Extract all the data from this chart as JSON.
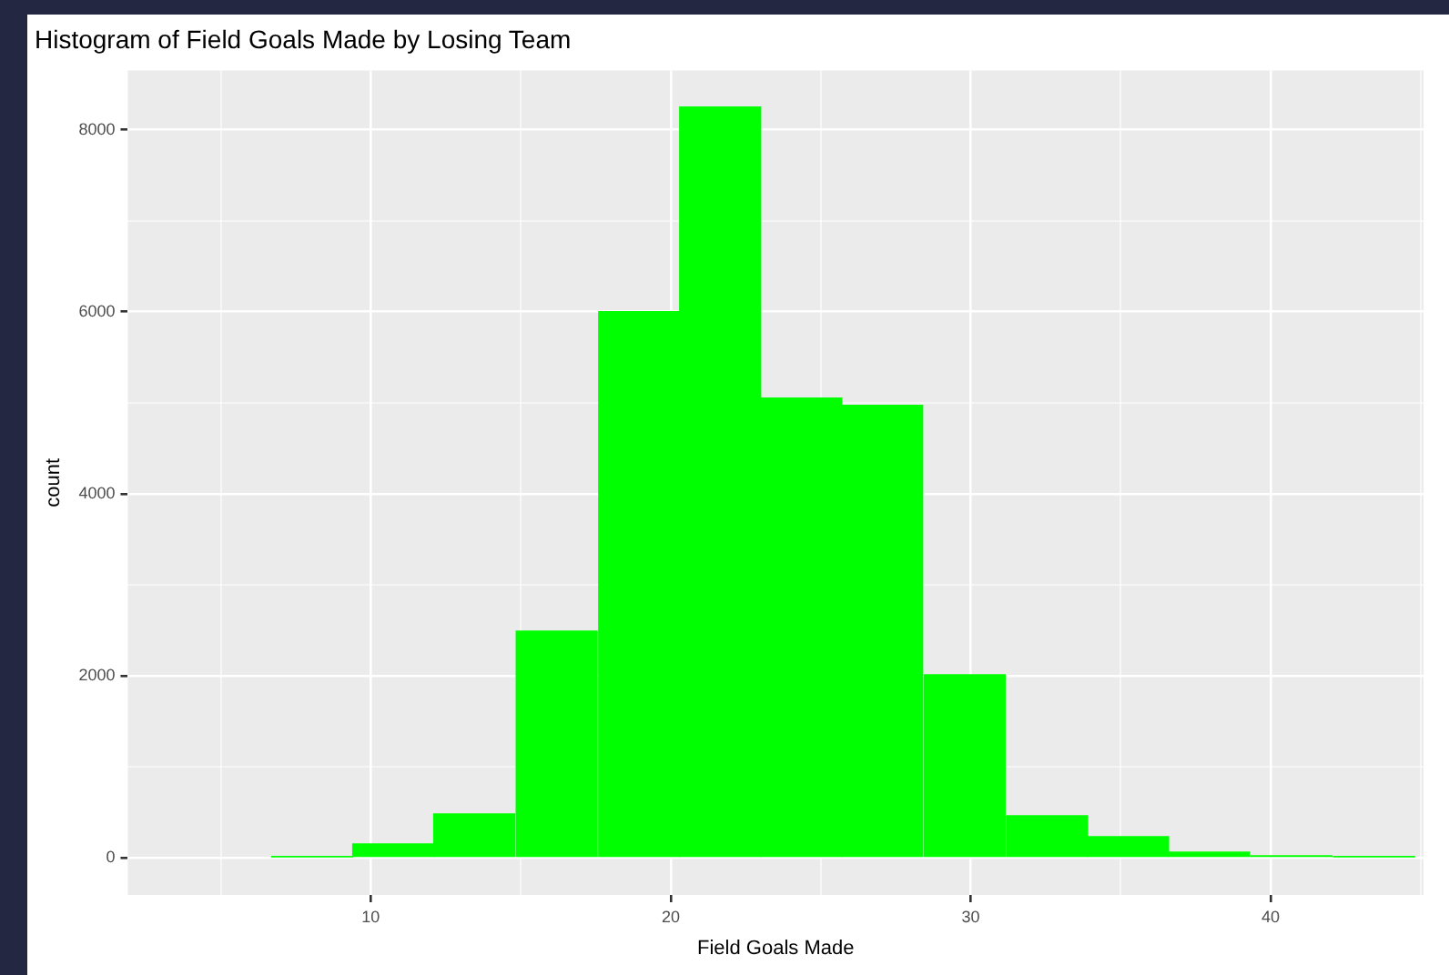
{
  "chart_data": {
    "type": "histogram",
    "title": "Histogram of Field Goals Made by Losing Team",
    "xlabel": "Field Goals Made",
    "ylabel": "count",
    "bins": [
      6.7,
      9.4,
      12.1,
      14.8,
      17.6,
      20.3,
      23.0,
      25.7,
      28.4,
      31.2,
      33.9,
      36.6,
      39.3,
      42.1,
      44.8
    ],
    "values": [
      10,
      150,
      480,
      2490,
      6000,
      8250,
      5050,
      4970,
      2010,
      460,
      230,
      60,
      20,
      10
    ],
    "color": "#00ff00",
    "xlim": [
      1.9,
      45.1
    ],
    "ylim": [
      -410,
      8650
    ],
    "xticks": [
      {
        "value": 5,
        "label": null
      },
      10,
      {
        "value": 15,
        "label": null
      },
      20,
      {
        "value": 25,
        "label": null
      },
      30,
      {
        "value": 35,
        "label": null
      },
      40,
      {
        "value": 45,
        "label": null
      }
    ],
    "yticks": [
      0,
      {
        "value": 1000,
        "label": null
      },
      2000,
      {
        "value": 3000,
        "label": null
      },
      4000,
      {
        "value": 5000,
        "label": null
      },
      6000,
      {
        "value": 7000,
        "label": null
      },
      8000
    ],
    "grid": true
  }
}
